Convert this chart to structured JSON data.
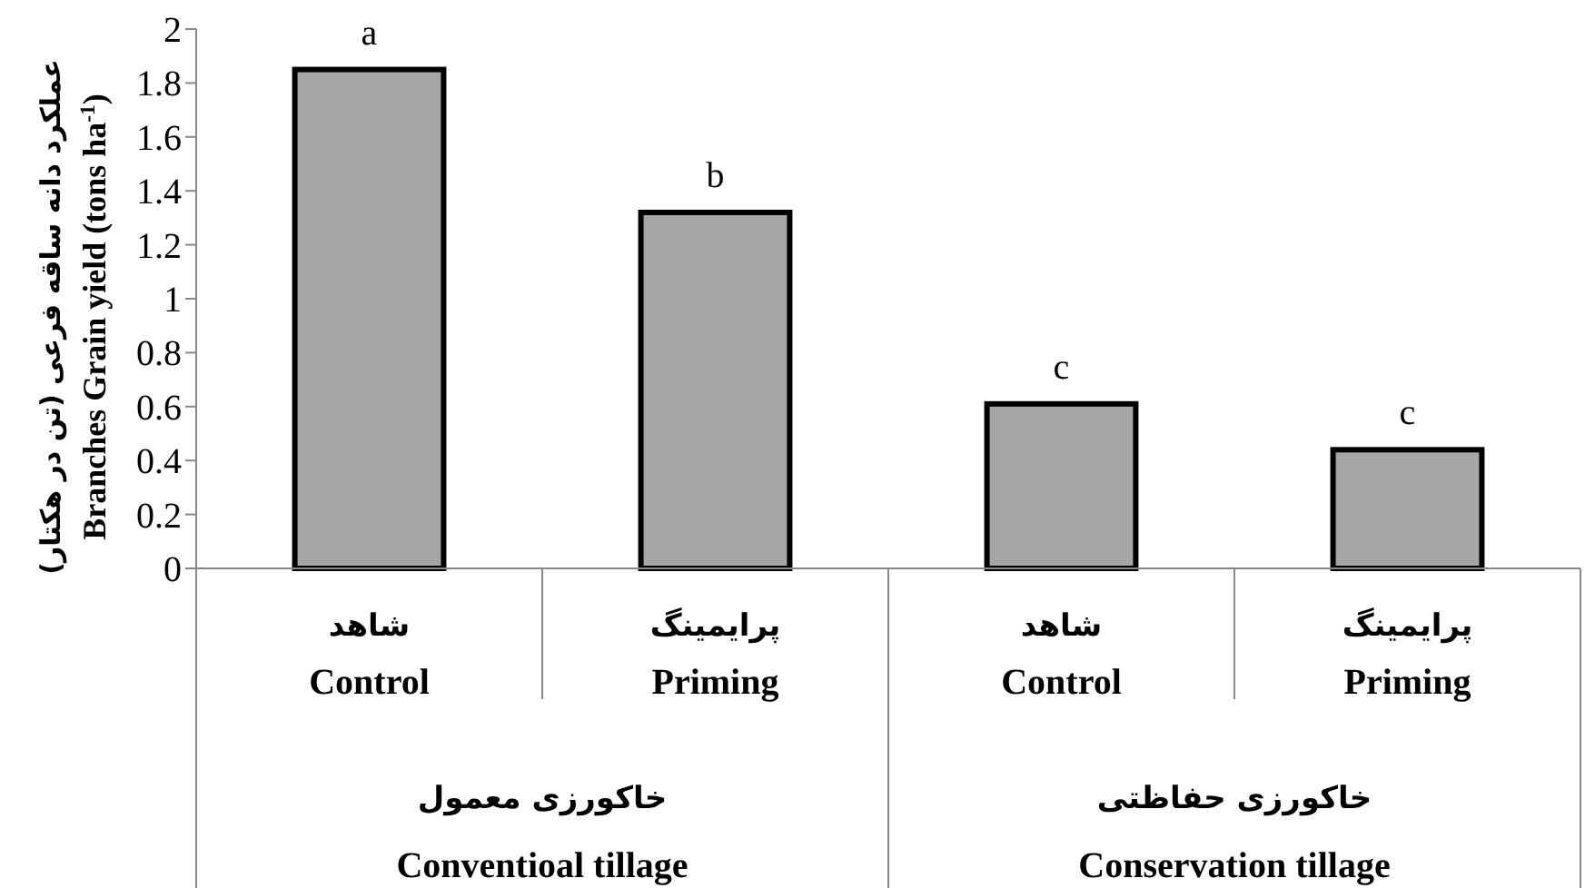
{
  "chart_data": {
    "type": "bar",
    "ylabel": "عملکرد دانه ساقه فرعی (تن در هکتار)\nBranches Grain yield (tons ha$^{-1}$)",
    "categories": [
      "شاهد\nControl",
      "پرایمینگ\nPriming",
      "شاهد\nControl",
      "پرایمینگ\nPriming"
    ],
    "values": [
      1.85,
      1.32,
      0.61,
      0.44
    ],
    "color": "#a6a6a6",
    "value_labels": [
      "a",
      "b",
      "c",
      "c"
    ],
    "annotations": [
      "خاکورزی معمول\nConventioal tillage",
      "خاکورزی حفاظتی\nConservation tillage"
    ],
    "ylim": [
      0,
      2
    ],
    "yticks": [
      0,
      0.2,
      0.4,
      0.6,
      0.8,
      1,
      1.2,
      1.4,
      1.6,
      1.8,
      2
    ],
    "grid": false
  }
}
